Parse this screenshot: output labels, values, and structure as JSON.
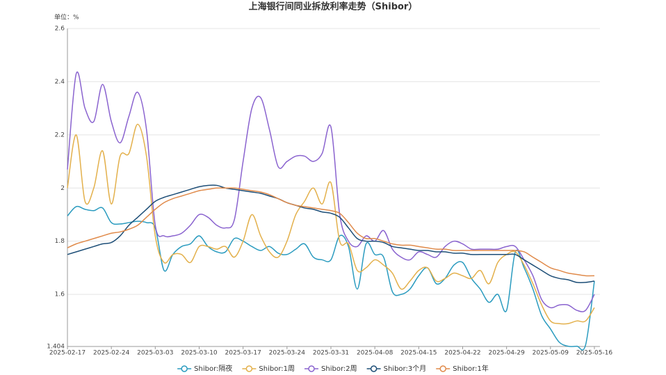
{
  "chart_data": {
    "type": "line",
    "title": "上海银行间同业拆放利率走势（Shibor）",
    "y_unit_label": "单位：%",
    "categories": [
      "2025-02-17",
      null,
      null,
      null,
      null,
      "2025-02-24",
      null,
      null,
      null,
      null,
      "2025-03-03",
      null,
      null,
      null,
      null,
      "2025-03-10",
      null,
      null,
      null,
      null,
      "2025-03-17",
      null,
      null,
      null,
      null,
      "2025-03-24",
      null,
      null,
      null,
      null,
      "2025-03-31",
      null,
      null,
      null,
      null,
      "2025-04-08",
      null,
      null,
      null,
      null,
      "2025-04-15",
      null,
      null,
      null,
      null,
      "2025-04-22",
      null,
      null,
      null,
      null,
      "2025-04-29",
      null,
      null,
      null,
      null,
      "2025-05-09",
      null,
      null,
      null,
      null,
      "2025-05-16"
    ],
    "ylim": [
      1.404,
      2.6
    ],
    "yticks": [
      1.404,
      1.6,
      1.8,
      2,
      2.2,
      2.4,
      2.6
    ],
    "grid": true,
    "smooth": true,
    "legend": "bottom",
    "series": [
      {
        "name": "Shibor:隔夜",
        "color": "#2a9bbf",
        "values": [
          1.895,
          1.93,
          1.92,
          1.915,
          1.925,
          1.87,
          1.865,
          1.87,
          1.875,
          1.87,
          1.85,
          1.69,
          1.75,
          1.78,
          1.79,
          1.82,
          1.78,
          1.76,
          1.76,
          1.81,
          1.8,
          1.78,
          1.765,
          1.78,
          1.755,
          1.75,
          1.77,
          1.79,
          1.74,
          1.73,
          1.73,
          1.82,
          1.78,
          1.62,
          1.79,
          1.75,
          1.74,
          1.61,
          1.6,
          1.62,
          1.67,
          1.7,
          1.64,
          1.66,
          1.71,
          1.72,
          1.66,
          1.62,
          1.57,
          1.6,
          1.54,
          1.76,
          1.7,
          1.62,
          1.52,
          1.47,
          1.42,
          1.405,
          1.405,
          1.41,
          1.65
        ]
      },
      {
        "name": "Shibor:1周",
        "color": "#e3b04b",
        "values": [
          2.0,
          2.2,
          1.95,
          2.0,
          2.14,
          1.94,
          2.12,
          2.13,
          2.24,
          2.12,
          1.82,
          1.72,
          1.75,
          1.75,
          1.72,
          1.78,
          1.78,
          1.77,
          1.78,
          1.74,
          1.8,
          1.9,
          1.82,
          1.76,
          1.74,
          1.8,
          1.9,
          1.95,
          2.0,
          1.94,
          2.02,
          1.8,
          1.79,
          1.69,
          1.7,
          1.73,
          1.71,
          1.68,
          1.62,
          1.65,
          1.69,
          1.7,
          1.65,
          1.66,
          1.68,
          1.67,
          1.66,
          1.69,
          1.64,
          1.72,
          1.75,
          1.76,
          1.71,
          1.64,
          1.56,
          1.5,
          1.49,
          1.49,
          1.5,
          1.5,
          1.55
        ]
      },
      {
        "name": "Shibor:2周",
        "color": "#8a63cf",
        "values": [
          2.07,
          2.43,
          2.3,
          2.25,
          2.39,
          2.25,
          2.17,
          2.27,
          2.36,
          2.22,
          1.86,
          1.82,
          1.82,
          1.83,
          1.86,
          1.9,
          1.89,
          1.86,
          1.85,
          1.88,
          2.1,
          2.3,
          2.34,
          2.22,
          2.08,
          2.1,
          2.12,
          2.12,
          2.1,
          2.13,
          2.23,
          1.9,
          1.8,
          1.78,
          1.82,
          1.8,
          1.84,
          1.77,
          1.74,
          1.73,
          1.76,
          1.75,
          1.74,
          1.78,
          1.8,
          1.79,
          1.77,
          1.77,
          1.77,
          1.77,
          1.78,
          1.78,
          1.73,
          1.67,
          1.58,
          1.55,
          1.56,
          1.56,
          1.54,
          1.54,
          1.6
        ]
      },
      {
        "name": "Shibor:3个月",
        "color": "#1d4e77",
        "values": [
          1.75,
          1.76,
          1.77,
          1.78,
          1.79,
          1.795,
          1.82,
          1.86,
          1.89,
          1.92,
          1.95,
          1.965,
          1.975,
          1.985,
          1.995,
          2.005,
          2.01,
          2.01,
          2.0,
          1.995,
          1.99,
          1.985,
          1.98,
          1.97,
          1.96,
          1.945,
          1.935,
          1.925,
          1.92,
          1.91,
          1.905,
          1.89,
          1.85,
          1.81,
          1.8,
          1.8,
          1.795,
          1.78,
          1.775,
          1.77,
          1.765,
          1.765,
          1.76,
          1.76,
          1.755,
          1.755,
          1.75,
          1.75,
          1.75,
          1.75,
          1.75,
          1.75,
          1.73,
          1.71,
          1.69,
          1.67,
          1.66,
          1.655,
          1.645,
          1.645,
          1.65
        ]
      },
      {
        "name": "Shibor:1年",
        "color": "#e08a4a",
        "values": [
          1.775,
          1.79,
          1.8,
          1.81,
          1.82,
          1.83,
          1.835,
          1.845,
          1.86,
          1.89,
          1.92,
          1.945,
          1.96,
          1.97,
          1.98,
          1.99,
          1.995,
          2.0,
          2.0,
          2.0,
          1.995,
          1.99,
          1.985,
          1.975,
          1.96,
          1.945,
          1.935,
          1.93,
          1.925,
          1.92,
          1.915,
          1.905,
          1.87,
          1.83,
          1.81,
          1.81,
          1.8,
          1.79,
          1.785,
          1.785,
          1.78,
          1.775,
          1.77,
          1.77,
          1.765,
          1.765,
          1.765,
          1.765,
          1.765,
          1.765,
          1.765,
          1.765,
          1.76,
          1.74,
          1.72,
          1.7,
          1.69,
          1.68,
          1.675,
          1.67,
          1.67
        ]
      }
    ]
  }
}
